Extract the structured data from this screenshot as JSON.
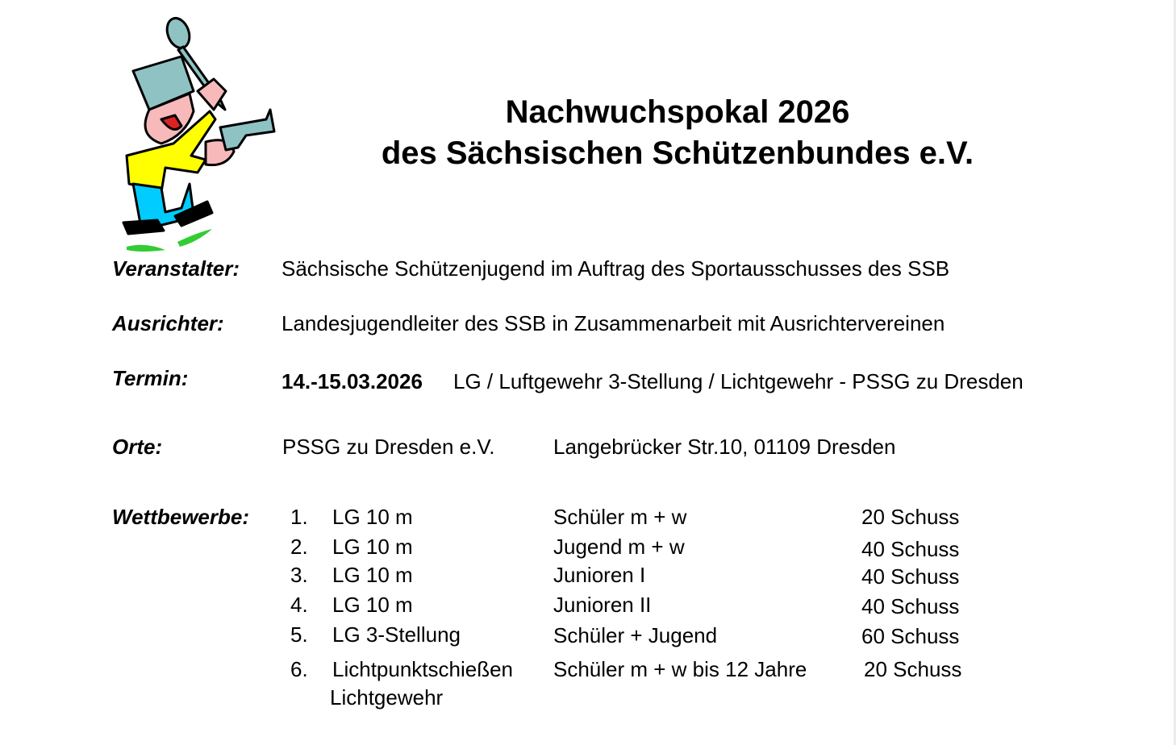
{
  "title": {
    "line1": "Nachwuchspokal 2026",
    "line2": "des Sächsischen Schützenbundes e.V."
  },
  "logo_icon": "cartoon-shooter-with-pot-and-ladle",
  "fields": {
    "veranstalter": {
      "label": "Veranstalter:",
      "value": "Sächsische Schützenjugend im Auftrag des Sportausschusses des SSB"
    },
    "ausrichter": {
      "label": "Ausrichter:",
      "value": "Landesjugendleiter des SSB in Zusammenarbeit mit Ausrichtervereinen"
    },
    "termin": {
      "label": "Termin:",
      "date": "14.-15.03.2026",
      "value": "LG / Luftgewehr 3-Stellung / Lichtgewehr - PSSG zu Dresden"
    },
    "orte": {
      "label": "Orte:",
      "venue": "PSSG zu Dresden e.V.",
      "address": "Langebrücker Str.10, 01109 Dresden"
    }
  },
  "wettbewerbe": {
    "label": "Wettbewerbe:",
    "items": [
      {
        "num": "1.",
        "discipline": "LG 10 m",
        "class": "Schüler m + w",
        "shots": "20 Schuss"
      },
      {
        "num": "2.",
        "discipline": "LG 10 m",
        "class": "Jugend m + w",
        "shots": "40 Schuss"
      },
      {
        "num": "3.",
        "discipline": "LG 10 m",
        "class": "Junioren I",
        "shots": "40 Schuss"
      },
      {
        "num": "4.",
        "discipline": "LG 10 m",
        "class": "Junioren II",
        "shots": "40 Schuss"
      },
      {
        "num": "5.",
        "discipline": "LG 3-Stellung",
        "class": "Schüler + Jugend",
        "shots": "60 Schuss"
      },
      {
        "num": "6.",
        "discipline": "Lichtpunktschießen",
        "discipline_line2": "Lichtgewehr",
        "class": "Schüler m + w bis 12 Jahre",
        "shots": "20 Schuss"
      }
    ]
  }
}
